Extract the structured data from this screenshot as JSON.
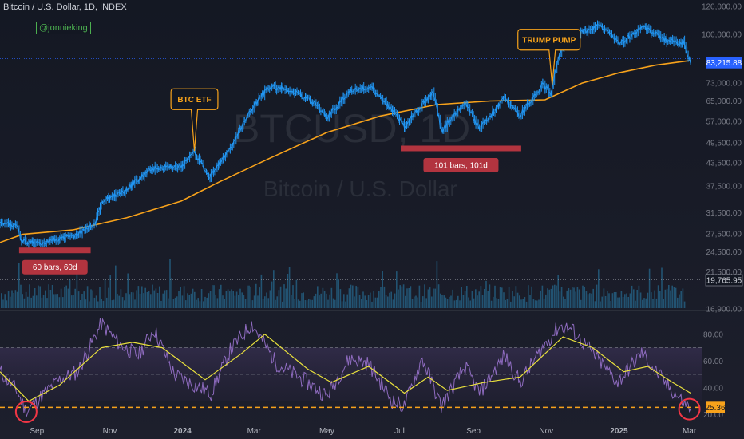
{
  "header": {
    "symbol_title": "Bitcoin / U.S. Dollar, 1D, INDEX",
    "author": "@jonnieking"
  },
  "watermark": {
    "ticker": "BTCUSD, 1D",
    "name": "Bitcoin / U.S. Dollar"
  },
  "colors": {
    "background": "#131722",
    "price_line": "#2196f3",
    "moving_average": "#f7a21b",
    "volume": "#26668b",
    "rsi_line": "#8e6bbf",
    "rsi_signal": "#e8e03c",
    "range_bar": "#b2343f",
    "price_badge": "#2962ff",
    "rsi_badge": "#f7a21b",
    "circle": "#f23645",
    "text": "#d1d4dc",
    "axis_text": "#787b86"
  },
  "chart_data": [
    {
      "type": "line",
      "title": "Bitcoin / U.S. Dollar, 1D, INDEX",
      "xlabel": "",
      "ylabel": "",
      "scale": "log",
      "ylim": [
        17000,
        125000
      ],
      "y_ticks": [
        "120,000.00",
        "100,000.00",
        "73,000.00",
        "65,000.00",
        "57,000.00",
        "49,500.00",
        "43,500.00",
        "37,500.00",
        "31,500.00",
        "27,500.00",
        "24,500.00",
        "21,500.00",
        "16,900.00"
      ],
      "x_ticks": [
        "Sep",
        "Nov",
        "2024",
        "Mar",
        "May",
        "Jul",
        "Sep",
        "Nov",
        "2025",
        "Mar"
      ],
      "series": [
        {
          "values": [
            [
              "2023-08-01",
              29200
            ],
            [
              "2023-08-16",
              29100
            ],
            [
              "2023-08-18",
              26300
            ],
            [
              "2023-09-01",
              25800
            ],
            [
              "2023-09-15",
              26500
            ],
            [
              "2023-10-01",
              27000
            ],
            [
              "2023-10-20",
              29500
            ],
            [
              "2023-10-25",
              34000
            ],
            [
              "2023-11-15",
              36500
            ],
            [
              "2023-12-05",
              42000
            ],
            [
              "2023-12-31",
              42500
            ],
            [
              "2024-01-11",
              46500
            ],
            [
              "2024-01-23",
              39500
            ],
            [
              "2024-02-10",
              47500
            ],
            [
              "2024-02-28",
              62000
            ],
            [
              "2024-03-14",
              71500
            ],
            [
              "2024-04-01",
              69500
            ],
            [
              "2024-04-20",
              64500
            ],
            [
              "2024-05-01",
              58000
            ],
            [
              "2024-05-21",
              70000
            ],
            [
              "2024-06-07",
              71000
            ],
            [
              "2024-06-25",
              61000
            ],
            [
              "2024-07-05",
              55000
            ],
            [
              "2024-07-29",
              69000
            ],
            [
              "2024-08-05",
              53500
            ],
            [
              "2024-08-25",
              64000
            ],
            [
              "2024-09-06",
              54000
            ],
            [
              "2024-09-27",
              66000
            ],
            [
              "2024-10-10",
              59000
            ],
            [
              "2024-10-29",
              72500
            ],
            [
              "2024-11-05",
              68000
            ],
            [
              "2024-11-12",
              89000
            ],
            [
              "2024-11-22",
              99000
            ],
            [
              "2024-12-17",
              106000
            ],
            [
              "2025-01-01",
              94000
            ],
            [
              "2025-01-22",
              105000
            ],
            [
              "2025-02-10",
              96000
            ],
            [
              "2025-02-24",
              95000
            ],
            [
              "2025-03-02",
              83215.88
            ]
          ]
        },
        {
          "values": [
            [
              "2023-08-01",
              26000
            ],
            [
              "2023-08-20",
              27400
            ],
            [
              "2023-10-01",
              28200
            ],
            [
              "2023-11-15",
              30500
            ],
            [
              "2023-12-31",
              34000
            ],
            [
              "2024-02-01",
              38500
            ],
            [
              "2024-03-15",
              45000
            ],
            [
              "2024-05-01",
              53000
            ],
            [
              "2024-06-15",
              59000
            ],
            [
              "2024-08-01",
              63500
            ],
            [
              "2024-09-15",
              65000
            ],
            [
              "2024-10-31",
              65500
            ],
            [
              "2024-12-01",
              73000
            ],
            [
              "2025-01-01",
              78000
            ],
            [
              "2025-02-01",
              82000
            ],
            [
              "2025-03-02",
              84500
            ]
          ]
        }
      ],
      "annotations": [
        {
          "text": "BTC ETF",
          "x": "2024-01-11",
          "y": 47000
        },
        {
          "text": "TRUMP PUMP",
          "x": "2024-11-06",
          "y": 72000
        }
      ],
      "ranges": [
        {
          "text": "60 bars, 60d",
          "x_start": "2023-08-17",
          "x_end": "2023-10-16",
          "y": 24700
        },
        {
          "text": "101 bars, 101d",
          "x_start": "2024-07-02",
          "x_end": "2024-10-11",
          "y": 47800
        }
      ],
      "price_labels": [
        "83,215.88",
        "19,765.95"
      ]
    },
    {
      "type": "line",
      "xlabel": "",
      "ylabel": "",
      "ylim": [
        16,
        96
      ],
      "y_ticks": [
        "80.00",
        "60.00",
        "40.00",
        "20.00"
      ],
      "series": [
        {
          "values": [
            [
              "2023-08-01",
              52
            ],
            [
              "2023-08-15",
              38
            ],
            [
              "2023-08-23",
              22
            ],
            [
              "2023-09-05",
              34
            ],
            [
              "2023-09-20",
              46
            ],
            [
              "2023-10-05",
              52
            ],
            [
              "2023-10-25",
              88
            ],
            [
              "2023-11-10",
              72
            ],
            [
              "2023-11-25",
              64
            ],
            [
              "2023-12-08",
              84
            ],
            [
              "2023-12-25",
              50
            ],
            [
              "2024-01-15",
              40
            ],
            [
              "2024-01-25",
              36
            ],
            [
              "2024-02-10",
              68
            ],
            [
              "2024-02-28",
              88
            ],
            [
              "2024-03-20",
              58
            ],
            [
              "2024-04-15",
              44
            ],
            [
              "2024-05-01",
              34
            ],
            [
              "2024-05-20",
              62
            ],
            [
              "2024-06-05",
              58
            ],
            [
              "2024-06-25",
              30
            ],
            [
              "2024-07-05",
              26
            ],
            [
              "2024-07-20",
              62
            ],
            [
              "2024-08-05",
              26
            ],
            [
              "2024-08-25",
              56
            ],
            [
              "2024-09-06",
              36
            ],
            [
              "2024-09-27",
              64
            ],
            [
              "2024-10-10",
              44
            ],
            [
              "2024-10-29",
              70
            ],
            [
              "2024-11-12",
              86
            ],
            [
              "2024-11-22",
              84
            ],
            [
              "2024-12-10",
              66
            ],
            [
              "2024-12-31",
              44
            ],
            [
              "2025-01-20",
              66
            ],
            [
              "2025-02-10",
              42
            ],
            [
              "2025-02-25",
              28
            ],
            [
              "2025-03-02",
              25.36
            ]
          ]
        },
        {
          "values": [
            [
              "2023-08-01",
              52
            ],
            [
              "2023-08-25",
              30
            ],
            [
              "2023-09-20",
              42
            ],
            [
              "2023-10-25",
              70
            ],
            [
              "2023-11-20",
              74
            ],
            [
              "2023-12-15",
              70
            ],
            [
              "2024-01-20",
              46
            ],
            [
              "2024-02-20",
              66
            ],
            [
              "2024-03-10",
              80
            ],
            [
              "2024-04-15",
              54
            ],
            [
              "2024-05-05",
              44
            ],
            [
              "2024-06-05",
              56
            ],
            [
              "2024-07-05",
              36
            ],
            [
              "2024-07-25",
              48
            ],
            [
              "2024-08-10",
              38
            ],
            [
              "2024-09-10",
              44
            ],
            [
              "2024-10-10",
              48
            ],
            [
              "2024-11-15",
              78
            ],
            [
              "2024-12-10",
              70
            ],
            [
              "2025-01-05",
              52
            ],
            [
              "2025-01-25",
              56
            ],
            [
              "2025-02-15",
              44
            ],
            [
              "2025-03-02",
              36
            ]
          ]
        }
      ],
      "levels": [
        70,
        50,
        30
      ],
      "price_labels": [
        "25.36"
      ]
    }
  ]
}
